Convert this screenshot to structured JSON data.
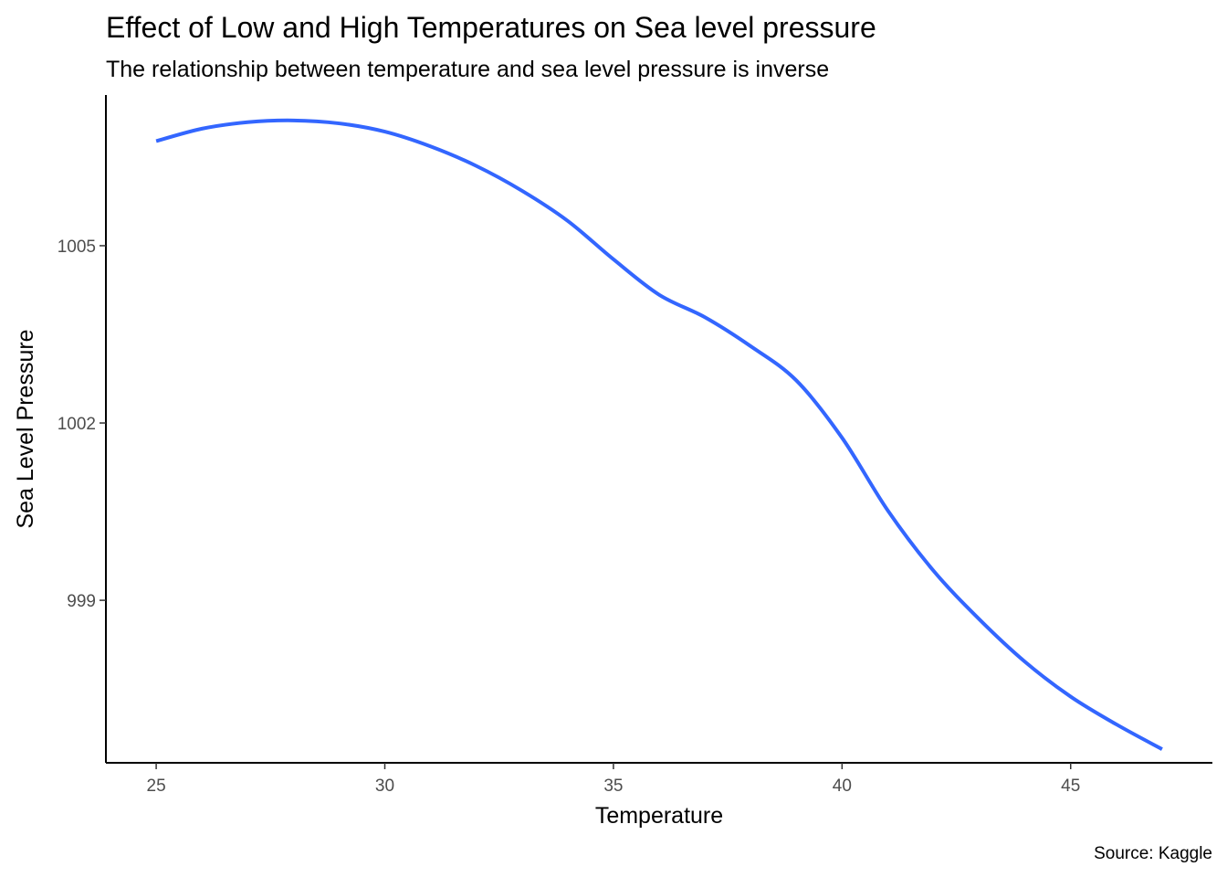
{
  "chart_data": {
    "type": "line",
    "title": "Effect of Low and High Temperatures on Sea level pressure",
    "subtitle": "The relationship between temperature and sea level pressure is inverse",
    "xlabel": "Temperature",
    "ylabel": "Sea Level Pressure",
    "caption": "Source: Kaggle",
    "xlim": [
      23.9,
      48.1
    ],
    "ylim": [
      996.25,
      1007.55
    ],
    "x_ticks": [
      25,
      30,
      35,
      40,
      45
    ],
    "x_tick_labels": [
      "25",
      "30",
      "35",
      "40",
      "45"
    ],
    "y_ticks": [
      999,
      1002,
      1005
    ],
    "y_tick_labels": [
      "999",
      "1002",
      "1005"
    ],
    "grid": false,
    "line_color": "#3366FF",
    "series": [
      {
        "x": [
          25,
          26,
          27,
          28,
          29,
          30,
          31,
          32,
          33,
          34,
          35,
          36,
          37,
          38,
          39,
          40,
          41,
          42,
          43,
          44,
          45,
          46,
          47
        ],
        "y": [
          1006.77,
          1006.98,
          1007.09,
          1007.12,
          1007.07,
          1006.93,
          1006.68,
          1006.35,
          1005.93,
          1005.42,
          1004.77,
          1004.17,
          1003.79,
          1003.3,
          1002.72,
          1001.75,
          1000.52,
          999.5,
          998.68,
          997.96,
          997.37,
          996.9,
          996.48
        ]
      }
    ]
  }
}
